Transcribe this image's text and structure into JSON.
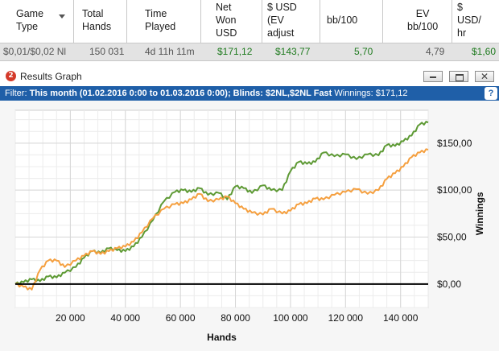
{
  "table": {
    "headers": [
      {
        "label": "Game\nType",
        "align": "left"
      },
      {
        "label": "Total\nHands",
        "align": "left"
      },
      {
        "label": "Time\nPlayed",
        "align": "left"
      },
      {
        "label": "Net\nWon\nUSD",
        "align": "left"
      },
      {
        "label": "$ USD\n(EV\nadjust",
        "align": "left"
      },
      {
        "label": "bb/100",
        "align": "left"
      },
      {
        "label": "EV\nbb/100",
        "align": "left"
      },
      {
        "label": "$\nUSD/\nhr",
        "align": "left"
      }
    ],
    "row": {
      "game_type": "$0,01/$0,02 Nl",
      "total_hands": "150 031",
      "time_played": "4d 11h 11m",
      "net_won": "$171,12",
      "ev_adjusted": "$143,77",
      "bb100": "5,70",
      "ev_bb100": "4,79",
      "usd_hr": "$1,60"
    }
  },
  "results_graph": {
    "logo_text": "2",
    "title": "Results Graph",
    "filter_label": "Filter:",
    "filter_value": "This month (01.02.2016 0:00 to 01.03.2016 0:00); Blinds: $2NL,$2NL Fast",
    "winnings_label": "Winnings:",
    "winnings_value": "$171,12",
    "help_label": "?"
  },
  "chart_data": {
    "type": "line",
    "xlabel": "Hands",
    "ylabel": "Winnings",
    "xlim": [
      0,
      150031
    ],
    "ylim": [
      -25,
      185
    ],
    "x_ticks": [
      20000,
      40000,
      60000,
      80000,
      100000,
      120000,
      140000
    ],
    "x_tick_labels": [
      "20 000",
      "40 000",
      "60 000",
      "80 000",
      "100 000",
      "120 000",
      "140 000"
    ],
    "y_ticks": [
      0,
      50,
      100,
      150
    ],
    "y_tick_labels": [
      "$0,00",
      "$50,00",
      "$100,00",
      "$150,00"
    ],
    "grid": true,
    "colors": {
      "net_won": "#5e9a35",
      "ev_adjusted": "#f5a040",
      "zero_line": "#000000"
    },
    "series": [
      {
        "key": "net_won",
        "x": [
          0,
          3000,
          6000,
          9000,
          12000,
          15000,
          18000,
          22000,
          25000,
          28000,
          31000,
          34000,
          37000,
          40000,
          43000,
          46000,
          50000,
          54000,
          58000,
          61000,
          64000,
          67000,
          70000,
          74000,
          77000,
          80000,
          83000,
          86000,
          90000,
          93000,
          97000,
          100000,
          103000,
          106000,
          109000,
          112000,
          116000,
          120000,
          124000,
          128000,
          132000,
          135000,
          138000,
          141000,
          144000,
          147000,
          150031
        ],
        "values": [
          0,
          2,
          5,
          3,
          8,
          7,
          12,
          18,
          28,
          35,
          33,
          38,
          36,
          35,
          40,
          50,
          68,
          88,
          98,
          100,
          98,
          102,
          95,
          97,
          90,
          104,
          102,
          97,
          105,
          100,
          100,
          120,
          130,
          128,
          130,
          140,
          136,
          138,
          133,
          138,
          137,
          148,
          147,
          152,
          158,
          170,
          172
        ]
      },
      {
        "key": "ev_adjusted",
        "x": [
          0,
          3000,
          6000,
          9000,
          12000,
          15000,
          18000,
          22000,
          25000,
          28000,
          31000,
          34000,
          37000,
          40000,
          43000,
          46000,
          50000,
          54000,
          58000,
          61000,
          64000,
          67000,
          70000,
          74000,
          77000,
          80000,
          83000,
          86000,
          90000,
          93000,
          97000,
          100000,
          103000,
          106000,
          109000,
          112000,
          116000,
          120000,
          124000,
          128000,
          132000,
          135000,
          138000,
          141000,
          144000,
          147000,
          150031
        ],
        "values": [
          0,
          -3,
          -6,
          15,
          25,
          25,
          18,
          25,
          30,
          35,
          32,
          35,
          38,
          40,
          45,
          55,
          70,
          80,
          85,
          86,
          90,
          96,
          88,
          90,
          93,
          86,
          80,
          76,
          74,
          80,
          75,
          78,
          85,
          86,
          91,
          90,
          95,
          98,
          101,
          96,
          100,
          112,
          118,
          125,
          135,
          140,
          143
        ]
      }
    ]
  }
}
